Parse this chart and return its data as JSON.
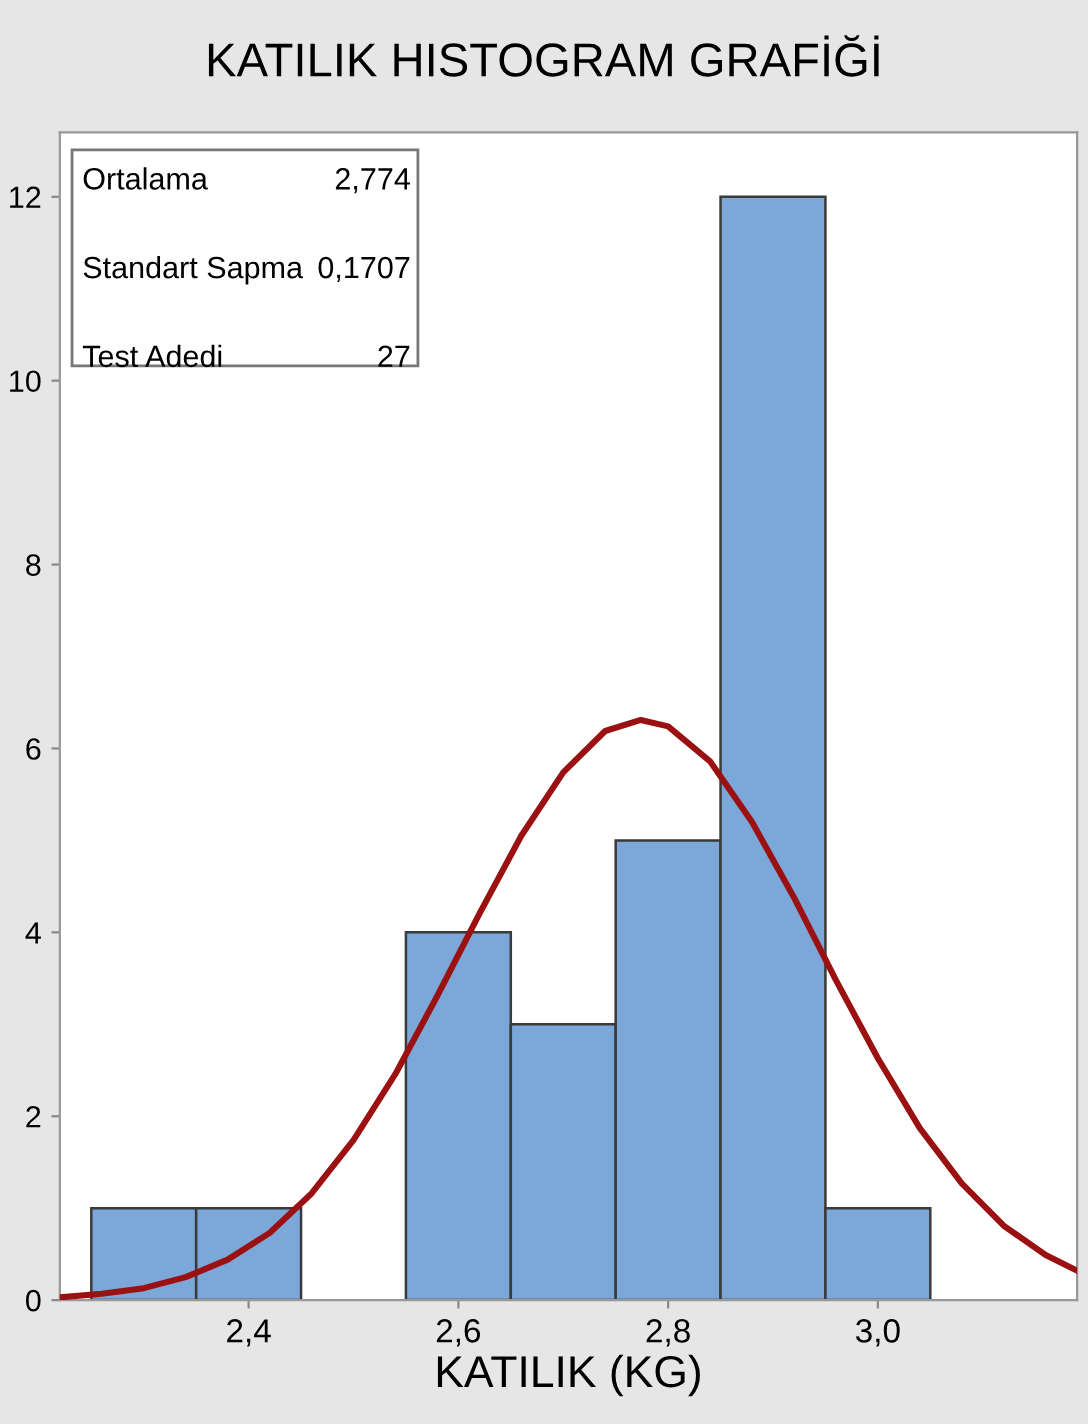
{
  "chart_data": {
    "type": "histogram",
    "title": "KATILIK HISTOGRAM GRAFİĞİ",
    "xlabel": "KATILIK (KG)",
    "bins": [
      2.25,
      2.35,
      2.45,
      2.55,
      2.65,
      2.75,
      2.85,
      2.95,
      3.05
    ],
    "values": [
      1,
      1,
      0,
      4,
      3,
      5,
      12,
      1
    ],
    "color": "#7ba7d9",
    "series": [
      {
        "type": "line",
        "color": "#9b1111",
        "x": [
          2.22,
          2.26,
          2.3,
          2.34,
          2.38,
          2.42,
          2.46,
          2.5,
          2.54,
          2.58,
          2.62,
          2.66,
          2.7,
          2.74,
          2.774,
          2.8,
          2.84,
          2.88,
          2.92,
          2.96,
          3.0,
          3.04,
          3.08,
          3.12,
          3.16,
          3.19
        ],
        "values": [
          0.03,
          0.07,
          0.13,
          0.25,
          0.44,
          0.73,
          1.16,
          1.74,
          2.46,
          3.31,
          4.2,
          5.05,
          5.74,
          6.19,
          6.31,
          6.24,
          5.86,
          5.2,
          4.38,
          3.48,
          2.63,
          1.87,
          1.27,
          0.81,
          0.49,
          0.32
        ]
      }
    ],
    "xlim": [
      2.22,
      3.19
    ],
    "xticks": [
      {
        "value": 2.4,
        "label": "2,4"
      },
      {
        "value": 2.6,
        "label": "2,6"
      },
      {
        "value": 2.8,
        "label": "2,8"
      },
      {
        "value": 3.0,
        "label": "3,0"
      }
    ],
    "ylim": [
      0,
      12.7
    ],
    "yticks": [
      0,
      2,
      4,
      6,
      8,
      10,
      12
    ],
    "grid": false,
    "legend": false,
    "annotations": [
      "Ortalama",
      "2,774",
      "Standart Sapma",
      "0,1707",
      "Test Adedi",
      "27"
    ]
  }
}
